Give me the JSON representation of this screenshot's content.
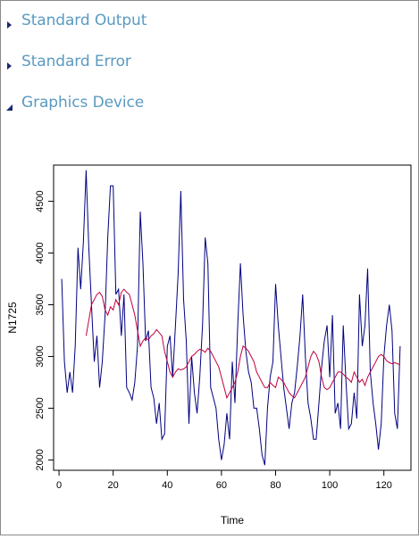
{
  "sections": [
    {
      "label": "Standard Output",
      "expanded": false,
      "icon": "triangle-right-icon"
    },
    {
      "label": "Standard Error",
      "expanded": false,
      "icon": "triangle-right-icon"
    },
    {
      "label": "Graphics Device",
      "expanded": true,
      "icon": "triangle-down-icon"
    }
  ],
  "colors": {
    "section_text": "#5b9ac0",
    "arrow": "#1a2a6c",
    "series_raw": "#000080",
    "series_smooth": "#c0003c"
  },
  "chart_data": {
    "type": "line",
    "xlabel": "Time",
    "ylabel": "N1725",
    "xlim": [
      -2,
      130
    ],
    "ylim": [
      1900,
      4850
    ],
    "xticks": [
      0,
      20,
      40,
      60,
      80,
      100,
      120
    ],
    "yticks": [
      2000,
      2500,
      3000,
      3500,
      4000,
      4500
    ],
    "grid": false,
    "series": [
      {
        "color": "#000080",
        "x": [
          1,
          2,
          3,
          4,
          5,
          6,
          7,
          8,
          9,
          10,
          11,
          12,
          13,
          14,
          15,
          16,
          17,
          18,
          19,
          20,
          21,
          22,
          23,
          24,
          25,
          26,
          27,
          28,
          29,
          30,
          31,
          32,
          33,
          34,
          35,
          36,
          37,
          38,
          39,
          40,
          41,
          42,
          43,
          44,
          45,
          46,
          47,
          48,
          49,
          50,
          51,
          52,
          53,
          54,
          55,
          56,
          57,
          58,
          59,
          60,
          61,
          62,
          63,
          64,
          65,
          66,
          67,
          68,
          69,
          70,
          71,
          72,
          73,
          74,
          75,
          76,
          77,
          78,
          79,
          80,
          81,
          82,
          83,
          84,
          85,
          86,
          87,
          88,
          89,
          90,
          91,
          92,
          93,
          94,
          95,
          96,
          97,
          98,
          99,
          100,
          101,
          102,
          103,
          104,
          105,
          106,
          107,
          108,
          109,
          110,
          111,
          112,
          113,
          114,
          115,
          116,
          117,
          118,
          119,
          120,
          121,
          122,
          123,
          124,
          125,
          126
        ],
        "y": [
          3750,
          2950,
          2650,
          2850,
          2650,
          3100,
          4050,
          3650,
          4100,
          4800,
          4050,
          3500,
          2950,
          3200,
          2700,
          2950,
          3400,
          4150,
          4650,
          4650,
          3600,
          3650,
          3200,
          3600,
          2700,
          2650,
          2580,
          2750,
          3100,
          4400,
          3900,
          3150,
          3250,
          2700,
          2600,
          2350,
          2550,
          2200,
          2250,
          3100,
          3200,
          2800,
          3300,
          3800,
          4600,
          3550,
          3150,
          2350,
          3000,
          2650,
          2450,
          2800,
          3300,
          4150,
          3900,
          2700,
          2600,
          2500,
          2200,
          2000,
          2150,
          2450,
          2200,
          2950,
          2550,
          3300,
          3900,
          3400,
          3050,
          2850,
          2750,
          2500,
          2500,
          2300,
          2050,
          1950,
          2500,
          2800,
          2950,
          3700,
          3300,
          3000,
          2700,
          2500,
          2300,
          2550,
          2650,
          2900,
          3200,
          3600,
          3000,
          2550,
          2400,
          2200,
          2200,
          2550,
          2900,
          3150,
          3300,
          2800,
          3400,
          2450,
          2550,
          2300,
          3300,
          2750,
          2300,
          2350,
          2650,
          2400,
          3600,
          3100,
          3300,
          3850,
          2850,
          2550,
          2350,
          2100,
          2350,
          3000,
          3300,
          3500,
          3250,
          2450,
          2300,
          3100
        ]
      },
      {
        "color": "#c0003c",
        "x": [
          10,
          11,
          12,
          13,
          14,
          15,
          16,
          17,
          18,
          19,
          20,
          21,
          22,
          23,
          24,
          25,
          26,
          27,
          28,
          29,
          30,
          31,
          32,
          33,
          34,
          35,
          36,
          37,
          38,
          39,
          40,
          41,
          42,
          43,
          44,
          45,
          46,
          47,
          48,
          49,
          50,
          51,
          52,
          53,
          54,
          55,
          56,
          57,
          58,
          59,
          60,
          61,
          62,
          63,
          64,
          65,
          66,
          67,
          68,
          69,
          70,
          71,
          72,
          73,
          74,
          75,
          76,
          77,
          78,
          79,
          80,
          81,
          82,
          83,
          84,
          85,
          86,
          87,
          88,
          89,
          90,
          91,
          92,
          93,
          94,
          95,
          96,
          97,
          98,
          99,
          100,
          101,
          102,
          103,
          104,
          105,
          106,
          107,
          108,
          109,
          110,
          111,
          112,
          113,
          114,
          115,
          116,
          117,
          118,
          119,
          120,
          121,
          122,
          123,
          124,
          125,
          126
        ],
        "y": [
          3200,
          3350,
          3500,
          3550,
          3600,
          3620,
          3580,
          3450,
          3400,
          3480,
          3450,
          3550,
          3500,
          3620,
          3650,
          3620,
          3600,
          3500,
          3400,
          3250,
          3100,
          3150,
          3180,
          3160,
          3200,
          3220,
          3260,
          3230,
          3200,
          3050,
          2950,
          2850,
          2800,
          2850,
          2880,
          2870,
          2880,
          2900,
          2950,
          3000,
          3020,
          3050,
          3070,
          3060,
          3040,
          3080,
          3050,
          3000,
          2950,
          2900,
          2800,
          2700,
          2600,
          2650,
          2700,
          2750,
          2850,
          3000,
          3100,
          3080,
          3050,
          3000,
          2950,
          2850,
          2800,
          2750,
          2700,
          2700,
          2750,
          2720,
          2700,
          2800,
          2780,
          2750,
          2700,
          2650,
          2620,
          2600,
          2650,
          2700,
          2750,
          2800,
          2900,
          3000,
          3050,
          3020,
          2950,
          2800,
          2700,
          2680,
          2700,
          2750,
          2800,
          2850,
          2850,
          2830,
          2800,
          2780,
          2750,
          2850,
          2800,
          2750,
          2780,
          2720,
          2800,
          2850,
          2900,
          2950,
          3000,
          3020,
          3000,
          2960,
          2940,
          2930,
          2940,
          2930,
          2920
        ]
      }
    ]
  }
}
